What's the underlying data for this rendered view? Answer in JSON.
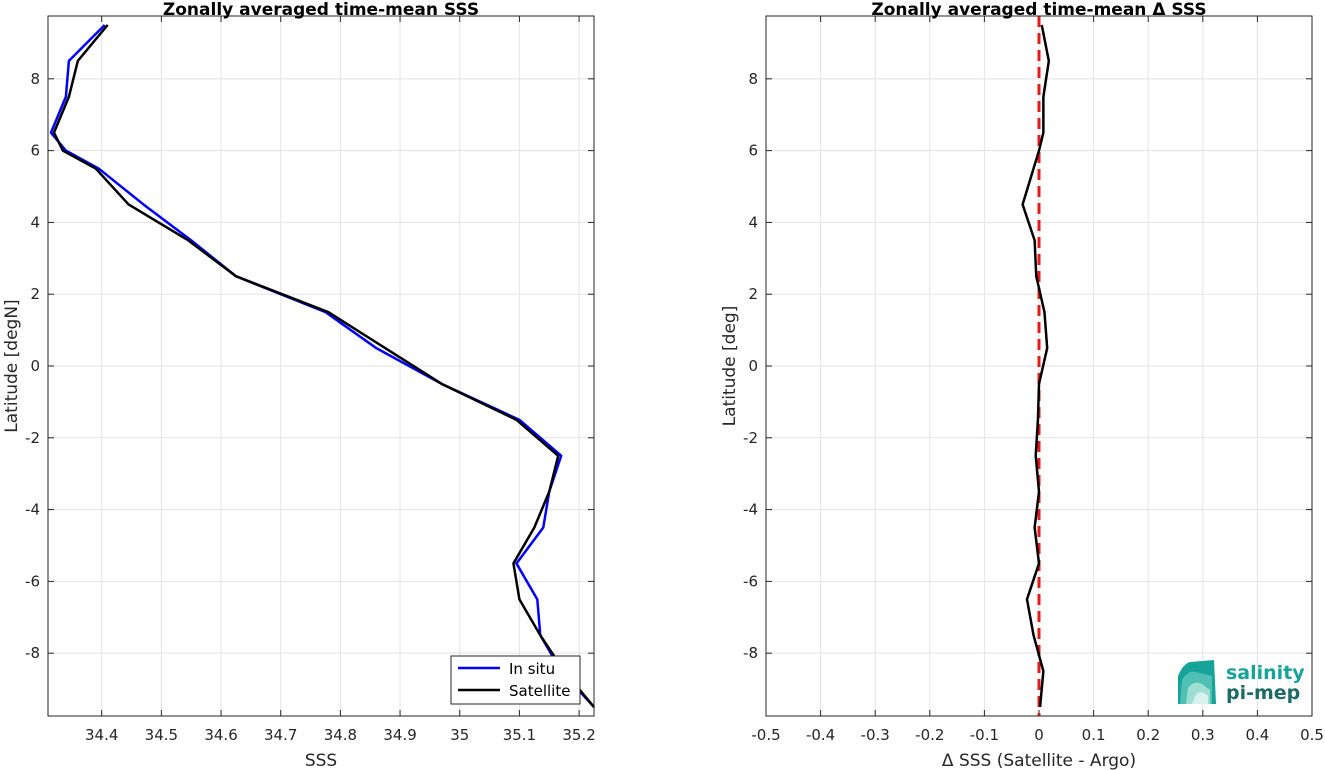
{
  "chart_data": [
    {
      "type": "line",
      "title": "Zonally averaged time-mean SSS",
      "xlabel": "SSS",
      "ylabel": "Latitude [degN]",
      "xlim": [
        34.31,
        35.225
      ],
      "ylim": [
        -9.75,
        9.75
      ],
      "xticks": [
        34.4,
        34.5,
        34.6,
        34.7,
        34.8,
        34.9,
        35,
        35.1,
        35.2
      ],
      "xtick_labels": [
        "34.4",
        "34.5",
        "34.6",
        "34.7",
        "34.8",
        "34.9",
        "35",
        "35.1",
        "35.2"
      ],
      "yticks": [
        -8,
        -6,
        -4,
        -2,
        0,
        2,
        4,
        6,
        8
      ],
      "ytick_labels": [
        "-8",
        "-6",
        "-4",
        "-2",
        "0",
        "2",
        "4",
        "6",
        "8"
      ],
      "grid": true,
      "legend": {
        "location": "bottom-right",
        "entries": [
          "In situ",
          "Satellite"
        ]
      },
      "series": [
        {
          "name": "In situ",
          "color": "#0000ff",
          "points": [
            [
              34.405,
              9.5
            ],
            [
              34.345,
              8.5
            ],
            [
              34.34,
              7.5
            ],
            [
              34.315,
              6.5
            ],
            [
              34.34,
              6.0
            ],
            [
              34.395,
              5.5
            ],
            [
              34.47,
              4.5
            ],
            [
              34.55,
              3.5
            ],
            [
              34.625,
              2.5
            ],
            [
              34.775,
              1.5
            ],
            [
              34.86,
              0.5
            ],
            [
              34.97,
              -0.5
            ],
            [
              35.1,
              -1.5
            ],
            [
              35.17,
              -2.5
            ],
            [
              35.15,
              -3.5
            ],
            [
              35.14,
              -4.5
            ],
            [
              35.095,
              -5.5
            ],
            [
              35.13,
              -6.5
            ],
            [
              35.135,
              -7.5
            ],
            [
              35.17,
              -8.5
            ],
            [
              35.225,
              -9.5
            ]
          ]
        },
        {
          "name": "Satellite",
          "color": "#000000",
          "points": [
            [
              34.41,
              9.5
            ],
            [
              34.36,
              8.5
            ],
            [
              34.345,
              7.5
            ],
            [
              34.32,
              6.5
            ],
            [
              34.335,
              6.0
            ],
            [
              34.39,
              5.5
            ],
            [
              34.445,
              4.5
            ],
            [
              34.545,
              3.5
            ],
            [
              34.625,
              2.5
            ],
            [
              34.78,
              1.5
            ],
            [
              34.875,
              0.5
            ],
            [
              34.97,
              -0.5
            ],
            [
              35.095,
              -1.5
            ],
            [
              35.165,
              -2.5
            ],
            [
              35.15,
              -3.5
            ],
            [
              35.125,
              -4.5
            ],
            [
              35.09,
              -5.5
            ],
            [
              35.1,
              -6.5
            ],
            [
              35.135,
              -7.5
            ],
            [
              35.175,
              -8.5
            ],
            [
              35.225,
              -9.5
            ]
          ]
        }
      ]
    },
    {
      "type": "line",
      "title": "Zonally averaged time-mean Δ SSS",
      "xlabel": "Δ SSS (Satellite - Argo)",
      "ylabel": "Latitude [deg]",
      "xlim": [
        -0.5,
        0.5
      ],
      "ylim": [
        -9.75,
        9.75
      ],
      "xticks": [
        -0.5,
        -0.4,
        -0.3,
        -0.2,
        -0.1,
        0,
        0.1,
        0.2,
        0.3,
        0.4,
        0.5
      ],
      "xtick_labels": [
        "-0.5",
        "-0.4",
        "-0.3",
        "-0.2",
        "-0.1",
        "0",
        "0.1",
        "0.2",
        "0.3",
        "0.4",
        "0.5"
      ],
      "yticks": [
        -8,
        -6,
        -4,
        -2,
        0,
        2,
        4,
        6,
        8
      ],
      "ytick_labels": [
        "-8",
        "-6",
        "-4",
        "-2",
        "0",
        "2",
        "4",
        "6",
        "8"
      ],
      "grid": true,
      "reference_line": {
        "x": 0,
        "color": "#e8191b",
        "style": "dashed"
      },
      "series": [
        {
          "color": "#000000",
          "points": [
            [
              0.005,
              9.5
            ],
            [
              0.018,
              8.5
            ],
            [
              0.008,
              7.5
            ],
            [
              0.008,
              6.5
            ],
            [
              0.0,
              6.0
            ],
            [
              -0.01,
              5.5
            ],
            [
              -0.03,
              4.5
            ],
            [
              -0.008,
              3.5
            ],
            [
              -0.005,
              2.5
            ],
            [
              0.01,
              1.5
            ],
            [
              0.015,
              0.5
            ],
            [
              0.0,
              -0.5
            ],
            [
              -0.002,
              -1.5
            ],
            [
              -0.006,
              -2.5
            ],
            [
              0.0,
              -3.5
            ],
            [
              -0.008,
              -4.5
            ],
            [
              0.0,
              -5.5
            ],
            [
              -0.022,
              -6.5
            ],
            [
              -0.01,
              -7.5
            ],
            [
              0.008,
              -8.5
            ],
            [
              0.002,
              -9.5
            ]
          ]
        }
      ]
    }
  ],
  "logo": {
    "line1": "salinity",
    "line2": "pi-mep",
    "colors": [
      "#1fb5a8",
      "#1e6b66"
    ]
  }
}
